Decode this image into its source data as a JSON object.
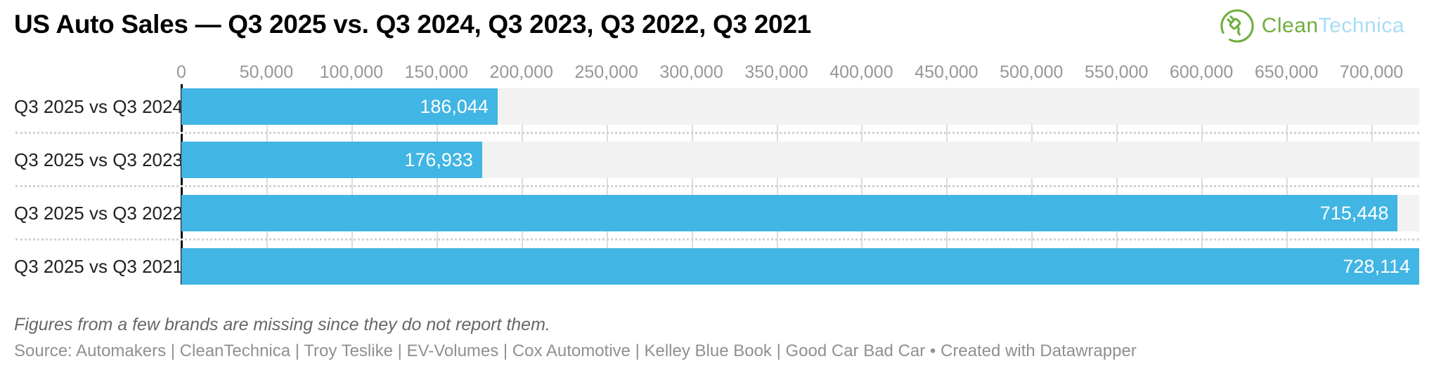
{
  "header": {
    "title": "US Auto Sales — Q3 2025 vs. Q3 2024, Q3 2023, Q3 2022, Q3 2021",
    "logo": {
      "brand_first": "Clean",
      "brand_second": "Technica",
      "icon": "cleantechnica-plug-icon",
      "color_green": "#6fae3e",
      "color_blue": "#a9dcf5"
    }
  },
  "chart_data": {
    "type": "bar",
    "orientation": "horizontal",
    "title": "US Auto Sales — Q3 2025 vs. Q3 2024, Q3 2023, Q3 2022, Q3 2021",
    "categories": [
      "Q3 2025 vs Q3 2024",
      "Q3 2025 vs Q3 2023",
      "Q3 2025 vs Q3 2022",
      "Q3 2025 vs Q3 2021"
    ],
    "values": [
      186044,
      176933,
      715448,
      728114
    ],
    "value_labels": [
      "186,044",
      "176,933",
      "715,448",
      "728,114"
    ],
    "xlabel": "",
    "ylabel": "",
    "xlim": [
      0,
      728114
    ],
    "x_ticks": [
      0,
      50000,
      100000,
      150000,
      200000,
      250000,
      300000,
      350000,
      400000,
      450000,
      500000,
      550000,
      600000,
      650000,
      700000
    ],
    "x_tick_labels": [
      "0",
      "50,000",
      "100,000",
      "150,000",
      "200,000",
      "250,000",
      "300,000",
      "350,000",
      "400,000",
      "450,000",
      "500,000",
      "550,000",
      "600,000",
      "650,000",
      "700,000"
    ],
    "grid": true,
    "legend": "none",
    "bar_color": "#41b5e3",
    "track_color": "#f2f2f2",
    "value_label_color": "#ffffff"
  },
  "footer": {
    "note": "Figures from a few brands are missing since they do not report them.",
    "source": "Source: Automakers | CleanTechnica | Troy Teslike | EV-Volumes | Cox Automotive | Kelley Blue Book | Good Car Bad Car • Created with Datawrapper"
  }
}
